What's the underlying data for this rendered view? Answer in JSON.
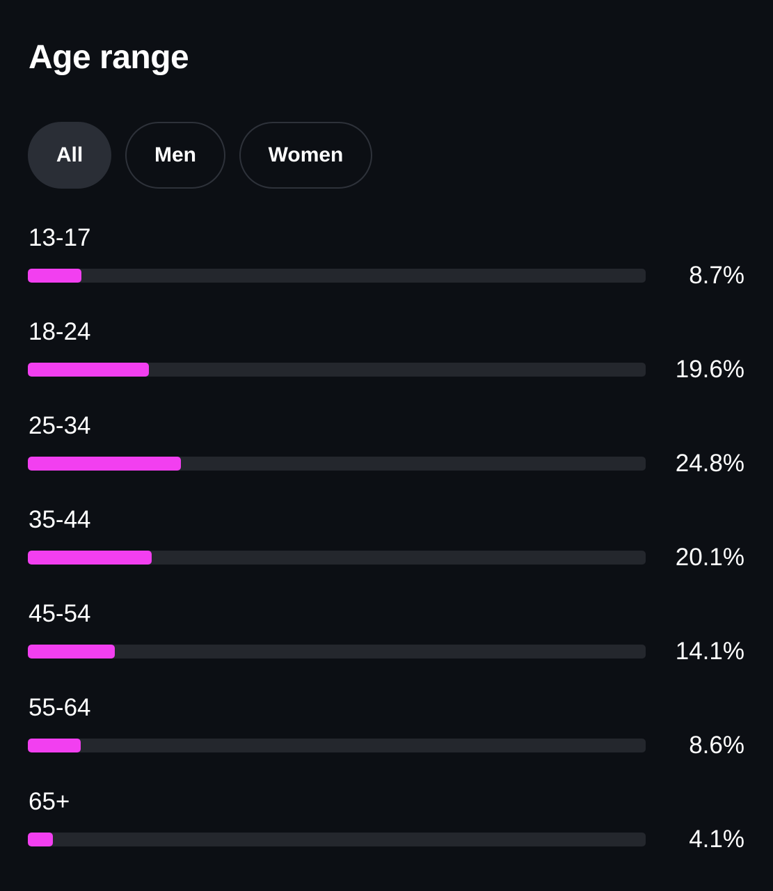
{
  "page": {
    "title": "Age range"
  },
  "filters": {
    "selected": "All",
    "items": [
      {
        "key": "all",
        "label": "All"
      },
      {
        "key": "men",
        "label": "Men"
      },
      {
        "key": "women",
        "label": "Women"
      }
    ]
  },
  "colors": {
    "background": "#0c0f14",
    "bar_fill": "#f23ff0",
    "bar_track": "#24272d",
    "pill_active": "#2a2e36",
    "pill_border": "#2e323a",
    "text": "#ffffff"
  },
  "age_ranges": [
    {
      "label": "13-17",
      "value": "8.7%",
      "percent": 8.7
    },
    {
      "label": "18-24",
      "value": "19.6%",
      "percent": 19.6
    },
    {
      "label": "25-34",
      "value": "24.8%",
      "percent": 24.8
    },
    {
      "label": "35-44",
      "value": "20.1%",
      "percent": 20.1
    },
    {
      "label": "45-54",
      "value": "14.1%",
      "percent": 14.1
    },
    {
      "label": "55-64",
      "value": "8.6%",
      "percent": 8.6
    },
    {
      "label": "65+",
      "value": "4.1%",
      "percent": 4.1
    }
  ]
}
